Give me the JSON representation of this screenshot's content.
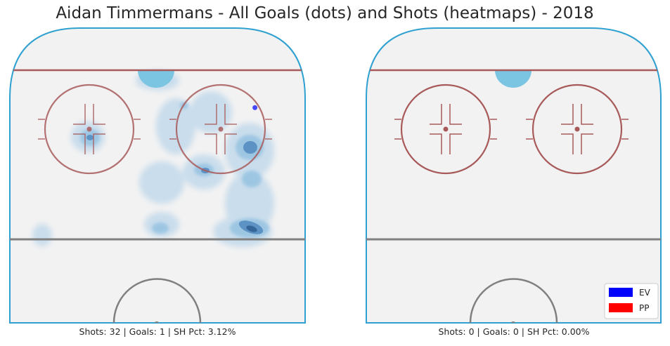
{
  "chart_data": {
    "type": "heatmap",
    "title": "Aidan Timmermans - All Goals (dots) and Shots (heatmaps) - 2018",
    "panels": [
      {
        "name": "left-rink",
        "caption": "Shots: 32 | Goals: 1 | SH Pct: 3.12%",
        "shots": 32,
        "goals": 1,
        "sh_pct": 3.12,
        "goal_points": [
          {
            "x": 0.83,
            "y": 0.27,
            "type": "EV"
          }
        ]
      },
      {
        "name": "right-rink",
        "caption": "Shots: 0 | Goals: 0 | SH Pct: 0.00%",
        "shots": 0,
        "goals": 0,
        "sh_pct": 0.0,
        "goal_points": []
      }
    ],
    "legend": {
      "placement": "bottom-right",
      "entries": [
        {
          "label": "EV",
          "color": "#0000ff"
        },
        {
          "label": "PP",
          "color": "#ff0000"
        }
      ]
    },
    "colors": {
      "ice": "#f2f2f2",
      "boards": "#2fa1d1",
      "red_line": "#a85a5a",
      "blue_line": "#808080",
      "crease": "#7bc4e2",
      "heat": "#3d7fb8"
    }
  }
}
